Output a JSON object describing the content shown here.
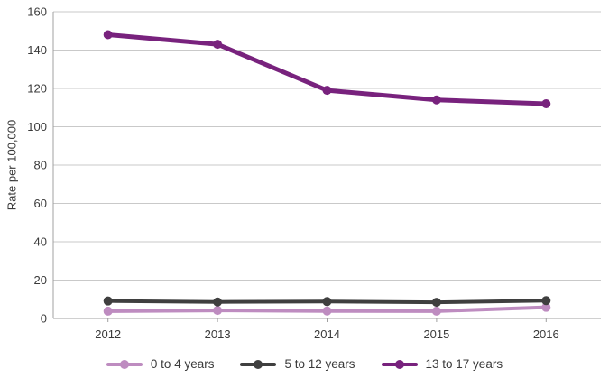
{
  "figure": {
    "background": "#ffffff",
    "text_color": "#3a3a3a",
    "grid_color": "#c9c9c9",
    "axis_color": "#a0a0a0"
  },
  "chart_data": {
    "type": "line",
    "title": "",
    "xlabel": "",
    "ylabel": "Rate per 100,000",
    "categories": [
      "2012",
      "2013",
      "2014",
      "2015",
      "2016"
    ],
    "series": [
      {
        "name": "0 to 4 years",
        "color": "#be8cc0",
        "values": [
          3.8,
          4.2,
          3.9,
          3.8,
          5.8
        ]
      },
      {
        "name": "5 to 12 years",
        "color": "#3f3f3f",
        "values": [
          9.1,
          8.6,
          8.8,
          8.4,
          9.3
        ]
      },
      {
        "name": "13 to 17 years",
        "color": "#78227d",
        "values": [
          148,
          143,
          119,
          114,
          112
        ]
      }
    ],
    "ylim": [
      0,
      160
    ],
    "yticks": [
      0,
      20,
      40,
      60,
      80,
      100,
      120,
      140,
      160
    ],
    "grid": true,
    "legend_position": "bottom"
  }
}
